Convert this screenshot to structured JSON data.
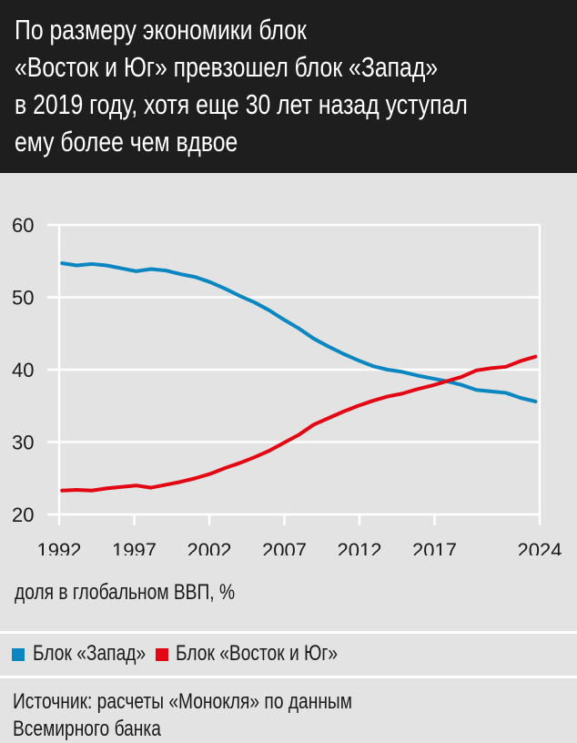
{
  "title_lines": [
    "По размеру экономики блок",
    "«Восток и Юг» превзошел блок «Запад»",
    "в 2019 году, хотя еще 30 лет назад уступал",
    "ему более чем вдвое"
  ],
  "unit_label": "доля в глобальном ВВП, %",
  "source_lines": [
    "Источник: расчеты «Монокля» по данным",
    "Всемирного банка"
  ],
  "chart_data": {
    "type": "line",
    "title": "По размеру экономики блок «Восток и Юг» превзошел блок «Запад» в 2019 году, хотя еще 30 лет назад уступал ему более чем вдвое",
    "ylabel": "доля в глобальном ВВП, %",
    "xlim": [
      1992,
      2024
    ],
    "ylim": [
      20,
      60
    ],
    "x_ticks": [
      1992,
      1997,
      2002,
      2007,
      2012,
      2017,
      2024
    ],
    "y_ticks": [
      20,
      30,
      40,
      50,
      60
    ],
    "grid": true,
    "legend_position": "bottom",
    "x": [
      1992,
      1993,
      1994,
      1995,
      1996,
      1997,
      1998,
      1999,
      2000,
      2001,
      2002,
      2003,
      2004,
      2005,
      2006,
      2007,
      2008,
      2009,
      2010,
      2011,
      2012,
      2013,
      2014,
      2015,
      2016,
      2017,
      2018,
      2019,
      2020,
      2021,
      2022,
      2023,
      2024
    ],
    "series": [
      {
        "name": "Блок «Запад»",
        "color": "#0a86c0",
        "values": [
          54.7,
          54.4,
          54.6,
          54.4,
          54.0,
          53.6,
          53.9,
          53.7,
          53.2,
          52.8,
          52.1,
          51.2,
          50.2,
          49.3,
          48.2,
          46.9,
          45.7,
          44.3,
          43.2,
          42.2,
          41.3,
          40.5,
          40.0,
          39.7,
          39.2,
          38.8,
          38.4,
          37.9,
          37.2,
          37.0,
          36.8,
          36.1,
          35.6
        ]
      },
      {
        "name": "Блок «Восток и Юг»",
        "color": "#e30613",
        "values": [
          23.3,
          23.4,
          23.3,
          23.6,
          23.8,
          24.0,
          23.7,
          24.1,
          24.5,
          25.0,
          25.6,
          26.4,
          27.1,
          27.9,
          28.8,
          29.9,
          31.0,
          32.4,
          33.3,
          34.2,
          35.0,
          35.7,
          36.3,
          36.7,
          37.3,
          37.8,
          38.4,
          39.0,
          39.9,
          40.2,
          40.4,
          41.2,
          41.8
        ]
      }
    ]
  }
}
